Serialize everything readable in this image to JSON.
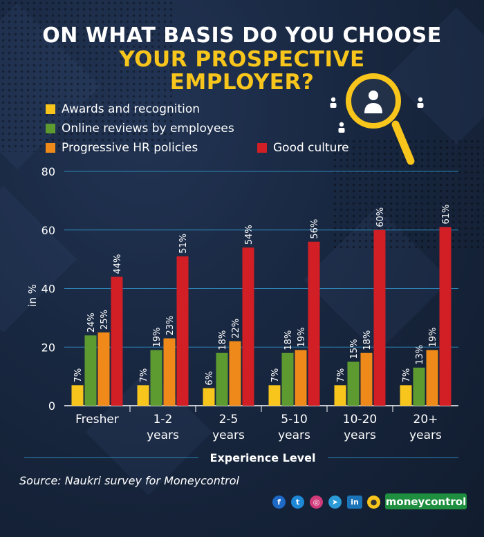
{
  "header": {
    "line1": "ON WHAT BASIS DO YOU CHOOSE",
    "line2": "YOUR PROSPECTIVE",
    "line3": "EMPLOYER?"
  },
  "colors": {
    "awards": "#f7c51b",
    "reviews": "#5d9b30",
    "hr": "#ef8a1a",
    "culture": "#d11f25",
    "title_accent": "#f7c51b"
  },
  "chart_data": {
    "type": "bar",
    "title": "ON WHAT BASIS DO YOU CHOOSE YOUR PROSPECTIVE EMPLOYER?",
    "xlabel": "Experience Level",
    "ylabel": "in %",
    "ylim": [
      0,
      80
    ],
    "yticks": [
      0,
      20,
      40,
      60,
      80
    ],
    "grid": true,
    "legend_position": "top-left",
    "categories": [
      "Fresher",
      "1-2 years",
      "2-5 years",
      "5-10 years",
      "10-20 years",
      "20+ years"
    ],
    "category_lines": [
      [
        "Fresher"
      ],
      [
        "1-2",
        "years"
      ],
      [
        "2-5",
        "years"
      ],
      [
        "5-10",
        "years"
      ],
      [
        "10-20",
        "years"
      ],
      [
        "20+",
        "years"
      ]
    ],
    "series": [
      {
        "name": "Awards and recognition",
        "color": "#f7c51b",
        "values": [
          7,
          7,
          6,
          7,
          7,
          7
        ]
      },
      {
        "name": "Online reviews by employees",
        "color": "#5d9b30",
        "values": [
          24,
          19,
          18,
          18,
          15,
          13
        ]
      },
      {
        "name": "Progressive HR policies",
        "color": "#ef8a1a",
        "values": [
          25,
          23,
          22,
          19,
          18,
          19
        ]
      },
      {
        "name": "Good culture",
        "color": "#d11f25",
        "values": [
          44,
          51,
          54,
          56,
          60,
          61
        ]
      }
    ],
    "value_suffix": "%"
  },
  "footer": {
    "source": "Source: Naukri survey for Moneycontrol",
    "brand": "moneycontrol",
    "social_icons": [
      "facebook-icon",
      "twitter-icon",
      "instagram-icon",
      "telegram-icon",
      "linkedin-icon",
      "koo-icon"
    ]
  }
}
